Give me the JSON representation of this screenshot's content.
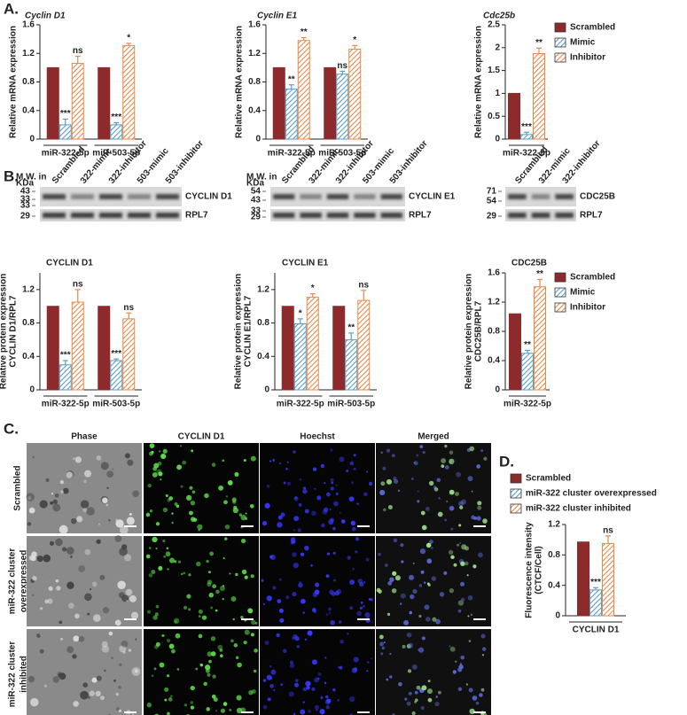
{
  "panels": {
    "A": "A.",
    "B": "B.",
    "C": "C.",
    "D": "D."
  },
  "chart_data": [
    {
      "type": "bar",
      "title": "Cyclin D1",
      "title_italic": true,
      "ylabel": [
        "Relative mRNA expression"
      ],
      "categories": [
        "miR-322-5p",
        "miR-503-5p"
      ],
      "ylim": [
        0,
        1.6
      ],
      "yticks": [
        0,
        0.4,
        0.8,
        1.2,
        1.6
      ],
      "legend": false,
      "series": [
        {
          "name": "Scrambled",
          "color": "#8c2a2c",
          "hatch": false,
          "values": [
            1,
            1
          ]
        },
        {
          "name": "Mimic",
          "color": "#5b9ec4",
          "hatch": true,
          "values": [
            0.2,
            0.2
          ],
          "errors": [
            0.08,
            0.03
          ],
          "annotations": [
            "***",
            "***"
          ]
        },
        {
          "name": "Inhibitor",
          "color": "#e8894a",
          "hatch": true,
          "values": [
            1.06,
            1.31
          ],
          "errors": [
            0.1,
            0.03
          ],
          "annotations": [
            "ns",
            "*"
          ]
        }
      ]
    },
    {
      "type": "bar",
      "title": "Cyclin E1",
      "title_italic": true,
      "ylabel": [
        "Relative mRNA expression"
      ],
      "categories": [
        "miR-322-5p",
        "miR-503-5p"
      ],
      "ylim": [
        0,
        1.6
      ],
      "yticks": [
        0,
        0.4,
        0.8,
        1.2,
        1.6
      ],
      "legend": false,
      "series": [
        {
          "name": "Scrambled",
          "color": "#8c2a2c",
          "hatch": false,
          "values": [
            1,
            1
          ]
        },
        {
          "name": "Mimic",
          "color": "#5b9ec4",
          "hatch": true,
          "values": [
            0.7,
            0.91
          ],
          "errors": [
            0.06,
            0.04
          ],
          "annotations": [
            "**",
            "ns"
          ]
        },
        {
          "name": "Inhibitor",
          "color": "#e8894a",
          "hatch": true,
          "values": [
            1.38,
            1.26
          ],
          "errors": [
            0.04,
            0.05
          ],
          "annotations": [
            "**",
            "*"
          ]
        }
      ]
    },
    {
      "type": "bar",
      "title": "Cdc25b",
      "title_italic": true,
      "ylabel": [
        "Relative mRNA expression"
      ],
      "categories": [
        "miR-322-5p"
      ],
      "ylim": [
        0,
        2.5
      ],
      "yticks": [
        0,
        0.5,
        1.0,
        1.5,
        2.0,
        2.5
      ],
      "legend": true,
      "series": [
        {
          "name": "Scrambled",
          "color": "#8c2a2c",
          "hatch": false,
          "values": [
            1
          ]
        },
        {
          "name": "Mimic",
          "color": "#5b9ec4",
          "hatch": true,
          "values": [
            0.1
          ],
          "errors": [
            0.05
          ],
          "annotations": [
            "***"
          ]
        },
        {
          "name": "Inhibitor",
          "color": "#e8894a",
          "hatch": true,
          "values": [
            1.87
          ],
          "errors": [
            0.12
          ],
          "annotations": [
            "**"
          ]
        }
      ]
    },
    {
      "type": "bar",
      "title": "CYCLIN D1",
      "title_italic": false,
      "ylabel": [
        "Relative protein expression",
        "CYCLIN D1/RPL7"
      ],
      "categories": [
        "miR-322-5p",
        "miR-503-5p"
      ],
      "ylim": [
        0,
        1.4
      ],
      "yticks": [
        0,
        0.4,
        0.8,
        1.2
      ],
      "legend": false,
      "series": [
        {
          "name": "Scrambled",
          "color": "#8c2a2c",
          "hatch": false,
          "values": [
            1,
            1
          ]
        },
        {
          "name": "Mimic",
          "color": "#5b9ec4",
          "hatch": true,
          "values": [
            0.3,
            0.35
          ],
          "errors": [
            0.05,
            0.02
          ],
          "annotations": [
            "***",
            "***"
          ]
        },
        {
          "name": "Inhibitor",
          "color": "#e8894a",
          "hatch": true,
          "values": [
            1.05,
            0.85
          ],
          "errors": [
            0.15,
            0.07
          ],
          "annotations": [
            "ns",
            "ns"
          ]
        }
      ]
    },
    {
      "type": "bar",
      "title": "CYCLIN E1",
      "title_italic": false,
      "ylabel": [
        "Relative protein expression",
        "CYCLIN E1/RPL7"
      ],
      "categories": [
        "miR-322-5p",
        "miR-503-5p"
      ],
      "ylim": [
        0,
        1.4
      ],
      "yticks": [
        0,
        0.4,
        0.8,
        1.2
      ],
      "legend": false,
      "series": [
        {
          "name": "Scrambled",
          "color": "#8c2a2c",
          "hatch": false,
          "values": [
            1,
            1
          ]
        },
        {
          "name": "Mimic",
          "color": "#5b9ec4",
          "hatch": true,
          "values": [
            0.79,
            0.6
          ],
          "errors": [
            0.06,
            0.08
          ],
          "annotations": [
            "*",
            "**"
          ]
        },
        {
          "name": "Inhibitor",
          "color": "#e8894a",
          "hatch": true,
          "values": [
            1.11,
            1.07
          ],
          "errors": [
            0.04,
            0.12
          ],
          "annotations": [
            "*",
            "ns"
          ]
        }
      ]
    },
    {
      "type": "bar",
      "title": "CDC25B",
      "title_italic": false,
      "ylabel": [
        "Relative protein expression",
        "CDC25B/RPL7"
      ],
      "categories": [
        "miR-322-5p"
      ],
      "ylim": [
        0,
        1.6
      ],
      "yticks": [
        0,
        0.4,
        0.8,
        1.2,
        1.6
      ],
      "legend": true,
      "series": [
        {
          "name": "Scrambled",
          "color": "#8c2a2c",
          "hatch": false,
          "values": [
            1.04
          ]
        },
        {
          "name": "Mimic",
          "color": "#5b9ec4",
          "hatch": true,
          "values": [
            0.5
          ],
          "errors": [
            0.04
          ],
          "annotations": [
            "**"
          ]
        },
        {
          "name": "Inhibitor",
          "color": "#e8894a",
          "hatch": true,
          "values": [
            1.41
          ],
          "errors": [
            0.1
          ],
          "annotations": [
            "**"
          ]
        }
      ]
    },
    {
      "type": "bar",
      "title": null,
      "title_italic": false,
      "ylabel": [
        "Fluorescence intensity",
        "(CTCF/Cell)"
      ],
      "categories": [
        "CYCLIN D1"
      ],
      "ylim": [
        0,
        1.2
      ],
      "yticks": [
        0,
        0.4,
        0.8,
        1.2
      ],
      "legend": true,
      "series": [
        {
          "name": "Scrambled",
          "color": "#8c2a2c",
          "hatch": false,
          "values": [
            0.97
          ]
        },
        {
          "name": "miR-322 cluster overexpressed",
          "color": "#5b9ec4",
          "hatch": true,
          "values": [
            0.34
          ],
          "errors": [
            0.03
          ],
          "annotations": [
            "***"
          ]
        },
        {
          "name": "miR-322 cluster inhibited",
          "color": "#e8894a",
          "hatch": true,
          "values": [
            0.95
          ],
          "errors": [
            0.1
          ],
          "annotations": [
            "ns"
          ]
        }
      ]
    }
  ],
  "blots": [
    {
      "lanes": [
        "Scrambled",
        "322-mimic",
        "322-inhibitor",
        "503-mimic",
        "503-inhibitor"
      ],
      "mw_title": [
        "M.W. in",
        "KDa"
      ],
      "mw": [
        "43",
        "33",
        "33",
        "29"
      ],
      "proteins": [
        "CYCLIN D1",
        "RPL7"
      ]
    },
    {
      "lanes": [
        "Scrambled",
        "322-mimic",
        "322-inhibitor",
        "503-mimic",
        "503-inhibitor"
      ],
      "mw_title": [
        "M.W. in",
        "KDa"
      ],
      "mw": [
        "54",
        "43",
        "33",
        "29"
      ],
      "proteins": [
        "CYCLIN E1",
        "RPL7"
      ]
    },
    {
      "lanes": [
        "Scrambled",
        "322-mimic",
        "322-inhibitor"
      ],
      "mw_title": [],
      "mw": [
        "71",
        "54",
        "29"
      ],
      "proteins": [
        "CDC25B",
        "RPL7"
      ]
    }
  ],
  "microscopy": {
    "columns": [
      "Phase",
      "CYCLIN D1",
      "Hoechst",
      "Merged"
    ],
    "rows": [
      [
        "Scrambled"
      ],
      [
        "miR-322 cluster",
        "overexpressed"
      ],
      [
        "miR-322 cluster",
        "inhibited"
      ]
    ]
  }
}
